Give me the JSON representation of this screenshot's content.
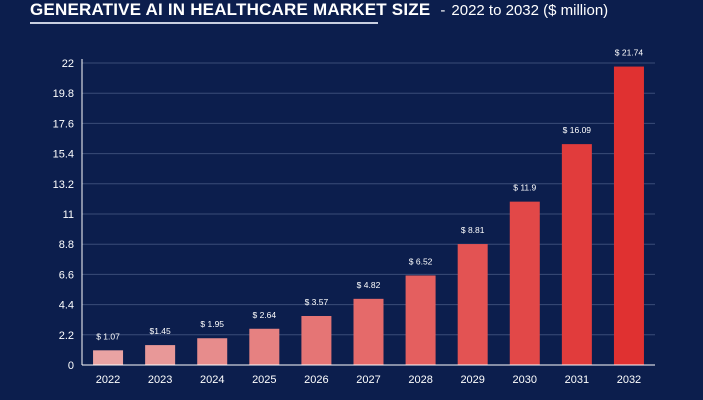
{
  "header": {
    "title": "GENERATIVE AI IN HEALTHCARE MARKET SIZE",
    "separator": "-",
    "subtitle": "2022 to 2032 ($ million)"
  },
  "colors": {
    "background": "#0c1e4d",
    "bar_start": "#e9a3a3",
    "bar_end": "#e03131"
  },
  "chart_data": {
    "type": "bar",
    "title": "GENERATIVE AI IN HEALTHCARE MARKET SIZE",
    "subtitle": "2022 to 2032 ($ million)",
    "xlabel": "",
    "ylabel": "",
    "ylim": [
      0,
      22
    ],
    "yticks": [
      "0",
      "2.2",
      "4.4",
      "6.6",
      "8.8",
      "11",
      "13.2",
      "15.4",
      "17.6",
      "19.8",
      "22"
    ],
    "grid": true,
    "categories": [
      "2022",
      "2023",
      "2024",
      "2025",
      "2026",
      "2027",
      "2028",
      "2029",
      "2030",
      "2031",
      "2032"
    ],
    "values": [
      1.07,
      1.45,
      1.95,
      2.64,
      3.57,
      4.82,
      6.52,
      8.81,
      11.9,
      16.09,
      21.74
    ],
    "data_labels": [
      "$ 1.07",
      "$1.45",
      "$ 1.95",
      "$ 2.64",
      "$ 3.57",
      "$ 4.82",
      "$ 6.52",
      "$ 8.81",
      "$ 11.9",
      "$ 16.09",
      "$ 21.74"
    ]
  }
}
